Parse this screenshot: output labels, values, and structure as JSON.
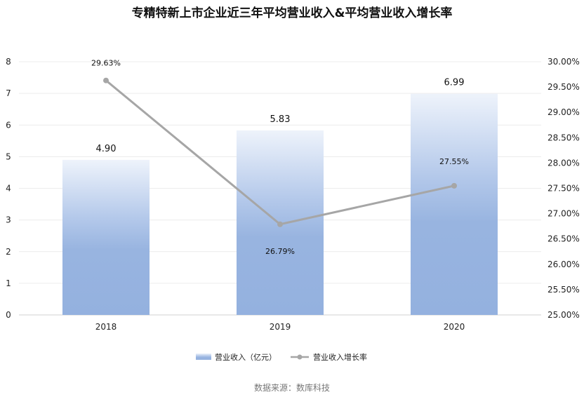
{
  "chart_data": {
    "type": "bar",
    "title": "专精特新上市企业近三年平均营业收入&平均营业收入增长率",
    "categories": [
      "2018",
      "2019",
      "2020"
    ],
    "series": [
      {
        "name": "营业收入（亿元）",
        "type": "bar",
        "axis": "left",
        "values": [
          4.9,
          5.83,
          6.99
        ],
        "labels": [
          "4.90",
          "5.83",
          "6.99"
        ],
        "color": "#94b1df"
      },
      {
        "name": "营业收入增长率",
        "type": "line",
        "axis": "right",
        "values": [
          29.63,
          26.79,
          27.55
        ],
        "labels": [
          "29.63%",
          "26.79%",
          "27.55%"
        ],
        "color": "#a6a6a6"
      }
    ],
    "y_left": {
      "range": [
        0,
        8
      ],
      "ticks": [
        "0",
        "1",
        "2",
        "3",
        "4",
        "5",
        "6",
        "7",
        "8"
      ]
    },
    "y_right": {
      "range": [
        25,
        30
      ],
      "ticks": [
        "25.00%",
        "25.50%",
        "26.00%",
        "26.50%",
        "27.00%",
        "27.50%",
        "28.00%",
        "28.50%",
        "29.00%",
        "29.50%",
        "30.00%"
      ]
    },
    "grid": true,
    "legend_position": "bottom",
    "source": "数据来源：数库科技"
  }
}
